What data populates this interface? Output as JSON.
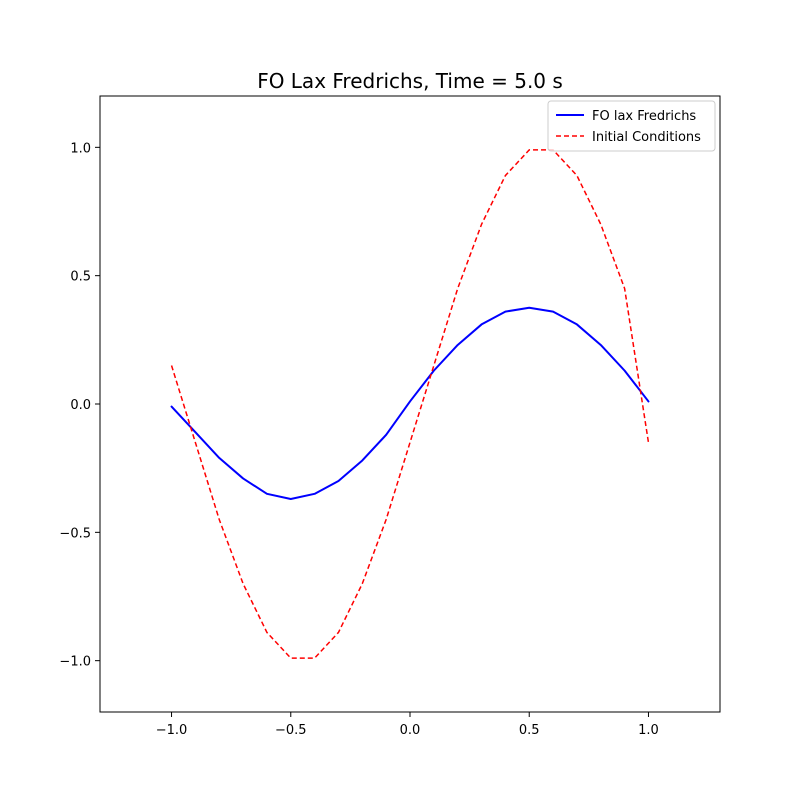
{
  "chart_data": {
    "type": "line",
    "title": "FO Lax Fredrichs, Time = 5.0 s",
    "xlabel": "",
    "ylabel": "",
    "xlim": [
      -1.3,
      1.3
    ],
    "ylim": [
      -1.2,
      1.2
    ],
    "xticks": [
      -1.0,
      -0.5,
      0.0,
      0.5,
      1.0
    ],
    "xtick_labels": [
      "−1.0",
      "−0.5",
      "0.0",
      "0.5",
      "1.0"
    ],
    "yticks": [
      -1.0,
      -0.5,
      0.0,
      0.5,
      1.0
    ],
    "ytick_labels": [
      "−1.0",
      "−0.5",
      "0.0",
      "0.5",
      "1.0"
    ],
    "grid": false,
    "legend_position": "top-right",
    "series": [
      {
        "name": "FO lax Fredrichs",
        "color": "#0000ff",
        "style": "solid",
        "x": [
          -1.0,
          -0.9,
          -0.8,
          -0.7,
          -0.6,
          -0.5,
          -0.4,
          -0.3,
          -0.2,
          -0.1,
          0.0,
          0.1,
          0.2,
          0.3,
          0.4,
          0.5,
          0.6,
          0.7,
          0.8,
          0.9,
          1.0
        ],
        "y": [
          -0.01,
          -0.11,
          -0.21,
          -0.29,
          -0.35,
          -0.37,
          -0.35,
          -0.3,
          -0.22,
          -0.12,
          0.01,
          0.13,
          0.23,
          0.31,
          0.36,
          0.375,
          0.36,
          0.31,
          0.23,
          0.13,
          0.01
        ]
      },
      {
        "name": "Initial Conditions",
        "color": "#ff0000",
        "style": "dashed",
        "x": [
          -1.0,
          -0.9,
          -0.8,
          -0.7,
          -0.6,
          -0.5,
          -0.4,
          -0.3,
          -0.2,
          -0.1,
          0.0,
          0.1,
          0.2,
          0.3,
          0.4,
          0.5,
          0.6,
          0.7,
          0.8,
          0.9,
          1.0
        ],
        "y": [
          0.15,
          -0.15,
          -0.45,
          -0.7,
          -0.89,
          -0.99,
          -0.99,
          -0.89,
          -0.7,
          -0.45,
          -0.15,
          0.15,
          0.45,
          0.7,
          0.89,
          0.99,
          0.99,
          0.89,
          0.7,
          0.45,
          -0.15
        ]
      }
    ]
  }
}
